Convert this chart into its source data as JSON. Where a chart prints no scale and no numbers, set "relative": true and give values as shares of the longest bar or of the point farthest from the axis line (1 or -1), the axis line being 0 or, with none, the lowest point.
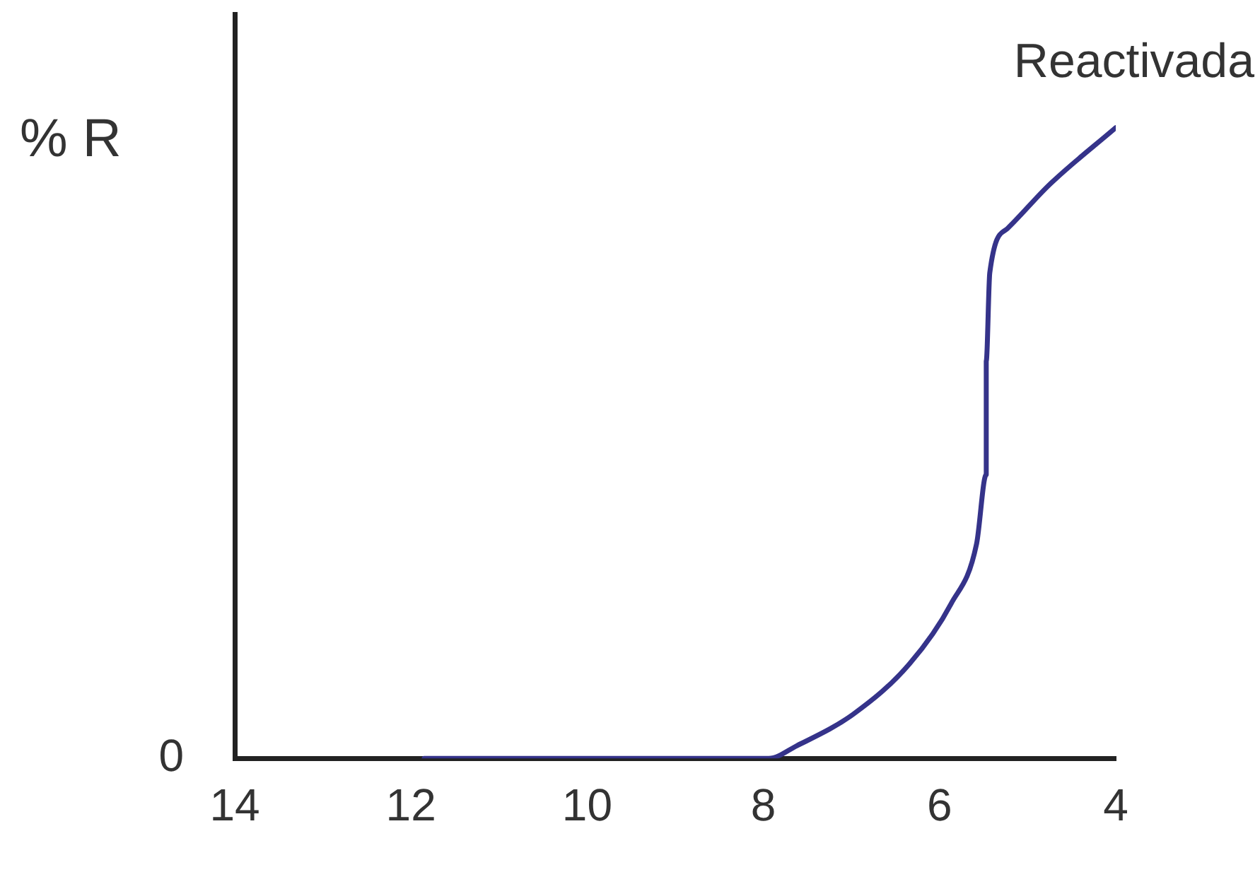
{
  "chart_data": {
    "type": "line",
    "relative": true,
    "ylabel": "% R",
    "xlim": [
      14,
      4
    ],
    "xticks": [
      14,
      12,
      10,
      8,
      6,
      4
    ],
    "grid": false,
    "legend": false,
    "marker": "none",
    "line_style": "solid",
    "annotations": [
      "0"
    ],
    "series": [
      {
        "name": "Reactivada",
        "color": "#35338a",
        "x": [
          11.85,
          7.94,
          7.62,
          6.98,
          6.34,
          5.87,
          5.58,
          5.47,
          5.47,
          5.43,
          5.23,
          4.75,
          4.0
        ],
        "values": [
          0,
          0,
          0.02,
          0.07,
          0.15,
          0.245,
          0.34,
          0.45,
          0.63,
          0.77,
          0.84,
          0.91,
          1.0
        ]
      }
    ]
  }
}
